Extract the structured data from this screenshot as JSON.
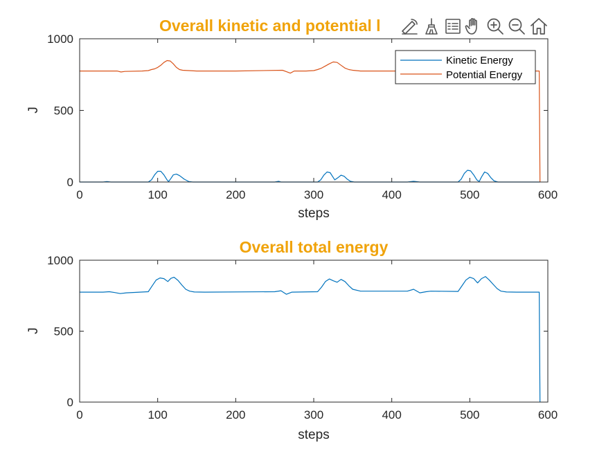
{
  "toolbar": {
    "icons": [
      "data-tips-icon",
      "brush-icon",
      "legend-toggle-icon",
      "pan-hand-icon",
      "zoom-in-icon",
      "zoom-out-icon",
      "home-restore-icon"
    ]
  },
  "chart_data": [
    {
      "type": "line",
      "title": "Overall kinetic and potential energy",
      "title_visible": "Overall kinetic and potential l",
      "xlabel": "steps",
      "ylabel": "J",
      "xlim": [
        0,
        600
      ],
      "ylim": [
        0,
        1000
      ],
      "xticks": [
        "0",
        "100",
        "200",
        "300",
        "400",
        "500",
        "600"
      ],
      "yticks": [
        "0",
        "500",
        "1000"
      ],
      "grid": false,
      "legend_position": "top-right",
      "series": [
        {
          "name": "Kinetic Energy",
          "color": "#0072bd",
          "x": [
            0,
            30,
            35,
            40,
            60,
            88,
            92,
            96,
            100,
            104,
            108,
            112,
            114,
            117,
            120,
            124,
            128,
            134,
            140,
            145,
            250,
            255,
            258,
            265,
            305,
            309,
            313,
            317,
            321,
            324,
            327,
            331,
            335,
            339,
            343,
            347,
            352,
            420,
            428,
            436,
            444,
            485,
            489,
            493,
            497,
            501,
            505,
            509,
            512,
            515,
            519,
            523,
            527,
            531,
            536,
            580,
            590
          ],
          "y": [
            0,
            0,
            3,
            0,
            0,
            0,
            15,
            50,
            75,
            75,
            50,
            15,
            3,
            25,
            50,
            55,
            45,
            20,
            3,
            0,
            0,
            5,
            0,
            0,
            0,
            15,
            48,
            70,
            65,
            40,
            15,
            30,
            48,
            40,
            20,
            5,
            0,
            0,
            5,
            0,
            0,
            0,
            20,
            60,
            82,
            78,
            50,
            15,
            3,
            35,
            70,
            60,
            30,
            8,
            0,
            0,
            0
          ]
        },
        {
          "name": "Potential Energy",
          "color": "#d95319",
          "x": [
            0,
            48,
            53,
            58,
            80,
            88,
            92,
            96,
            100,
            104,
            108,
            112,
            116,
            120,
            124,
            128,
            132,
            140,
            150,
            200,
            260,
            265,
            270,
            275,
            290,
            300,
            305,
            310,
            315,
            320,
            325,
            330,
            335,
            340,
            345,
            350,
            360,
            400,
            500,
            560,
            589,
            590
          ],
          "y": [
            775,
            775,
            768,
            772,
            775,
            778,
            785,
            790,
            800,
            815,
            835,
            848,
            845,
            825,
            800,
            785,
            780,
            778,
            775,
            775,
            780,
            770,
            760,
            775,
            775,
            778,
            785,
            795,
            810,
            825,
            838,
            835,
            815,
            795,
            785,
            780,
            775,
            775,
            775,
            775,
            775,
            0
          ]
        }
      ]
    },
    {
      "type": "line",
      "title": "Overall total energy",
      "xlabel": "steps",
      "ylabel": "J",
      "xlim": [
        0,
        600
      ],
      "ylim": [
        0,
        1000
      ],
      "xticks": [
        "0",
        "100",
        "200",
        "300",
        "400",
        "500",
        "600"
      ],
      "yticks": [
        "0",
        "500",
        "1000"
      ],
      "grid": false,
      "series": [
        {
          "color": "#0072bd",
          "x": [
            0,
            30,
            38,
            45,
            52,
            60,
            88,
            93,
            98,
            103,
            108,
            113,
            117,
            121,
            126,
            131,
            136,
            141,
            147,
            160,
            250,
            258,
            265,
            272,
            305,
            310,
            315,
            320,
            325,
            330,
            335,
            340,
            345,
            350,
            360,
            420,
            428,
            436,
            444,
            450,
            485,
            490,
            495,
            500,
            505,
            510,
            515,
            520,
            525,
            530,
            535,
            540,
            547,
            560,
            589,
            590
          ],
          "y": [
            775,
            775,
            778,
            772,
            765,
            770,
            778,
            820,
            860,
            875,
            870,
            850,
            872,
            880,
            858,
            825,
            795,
            782,
            776,
            775,
            778,
            785,
            760,
            775,
            778,
            810,
            850,
            868,
            855,
            845,
            865,
            850,
            820,
            795,
            782,
            782,
            795,
            770,
            778,
            782,
            780,
            820,
            860,
            880,
            870,
            840,
            870,
            885,
            860,
            830,
            800,
            782,
            776,
            775,
            775,
            0
          ]
        }
      ]
    }
  ]
}
